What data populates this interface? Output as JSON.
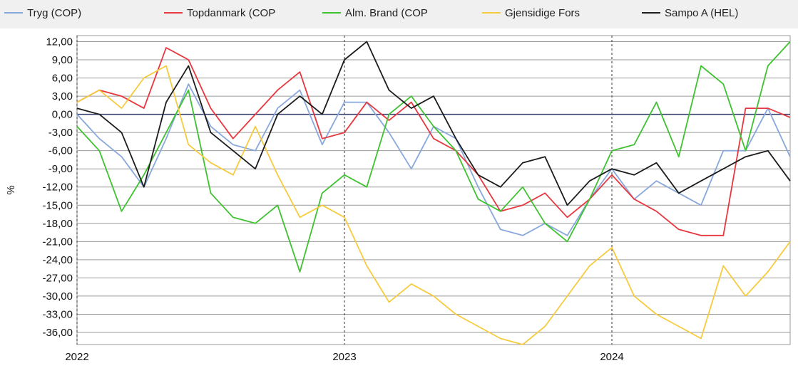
{
  "chart_data": {
    "type": "line",
    "ylabel": "%",
    "xlabel": "",
    "yticks": [
      "12,00",
      "9,00",
      "6,00",
      "3,00",
      "0,00",
      "-3,00",
      "-6,00",
      "-9,00",
      "-12,00",
      "-15,00",
      "-18,00",
      "-21,00",
      "-24,00",
      "-27,00",
      "-30,00",
      "-33,00",
      "-36,00"
    ],
    "ytick_values": [
      12,
      9,
      6,
      3,
      0,
      -3,
      -6,
      -9,
      -12,
      -15,
      -18,
      -21,
      -24,
      -27,
      -30,
      -33,
      -36
    ],
    "ylim": [
      -38,
      13
    ],
    "xlim": [
      0,
      32
    ],
    "xticks": [
      {
        "label": "2022",
        "x": 0
      },
      {
        "label": "2023",
        "x": 12
      },
      {
        "label": "2024",
        "x": 24
      }
    ],
    "legend_position": "top",
    "grid": true,
    "series": [
      {
        "name": "Tryg (COP)",
        "color": "#88a8dc",
        "x": [
          0,
          1,
          2,
          3,
          4,
          5,
          6,
          7,
          8,
          9,
          10,
          11,
          12,
          13,
          14,
          15,
          16,
          17,
          18,
          19,
          20,
          21,
          22,
          23,
          24,
          25,
          26,
          27,
          28,
          29,
          30,
          31,
          32
        ],
        "values": [
          0,
          -4,
          -7,
          -12,
          -4,
          5,
          -2,
          -5,
          -6,
          1,
          4,
          -5,
          2,
          2,
          -3,
          -9,
          -2,
          -4,
          -12,
          -19,
          -20,
          -18,
          -20,
          -14,
          -9,
          -14,
          -11,
          -13,
          -15,
          -6,
          -6,
          1,
          -7
        ]
      },
      {
        "name": "Topdanmark (COP",
        "color": "#e8373f",
        "x": [
          0,
          1,
          2,
          3,
          4,
          5,
          6,
          7,
          8,
          9,
          10,
          11,
          12,
          13,
          14,
          15,
          16,
          17,
          18,
          19,
          20,
          21,
          22,
          23,
          24,
          25,
          26,
          27,
          28,
          29,
          30,
          31,
          32
        ],
        "values": [
          2,
          4,
          3,
          1,
          11,
          9,
          1,
          -4,
          0,
          4,
          7,
          -4,
          -3,
          2,
          -1,
          2,
          -4,
          -6,
          -10,
          -16,
          -15,
          -13,
          -17,
          -14,
          -10,
          -14,
          -16,
          -19,
          -20,
          -20,
          1,
          1,
          -0.5
        ]
      },
      {
        "name": "Alm. Brand (COP",
        "color": "#3ec230",
        "x": [
          0,
          1,
          2,
          3,
          4,
          5,
          6,
          7,
          8,
          9,
          10,
          11,
          12,
          13,
          14,
          15,
          16,
          17,
          18,
          19,
          20,
          21,
          22,
          23,
          24,
          25,
          26,
          27,
          28,
          29,
          30,
          31,
          32
        ],
        "values": [
          -2,
          -6,
          -16,
          -10,
          -3,
          4,
          -13,
          -17,
          -18,
          -15,
          -26,
          -13,
          -10,
          -12,
          0,
          3,
          -2,
          -6,
          -14,
          -16,
          -12,
          -18,
          -21,
          -14,
          -6,
          -5,
          2,
          -7,
          8,
          5,
          -6,
          8,
          12
        ]
      },
      {
        "name": "Gjensidige Fors",
        "color": "#f7cb3e",
        "x": [
          0,
          1,
          2,
          3,
          4,
          5,
          6,
          7,
          8,
          9,
          10,
          11,
          12,
          13,
          14,
          15,
          16,
          17,
          18,
          19,
          20,
          21,
          22,
          23,
          24,
          25,
          26,
          27,
          28,
          29,
          30,
          31,
          32
        ],
        "values": [
          2,
          4,
          1,
          6,
          8,
          -5,
          -8,
          -10,
          -2,
          -10,
          -17,
          -15,
          -17,
          -25,
          -31,
          -28,
          -30,
          -33,
          -35,
          -37,
          -38,
          -35,
          -30,
          -25,
          -22,
          -30,
          -33,
          -35,
          -37,
          -25,
          -30,
          -26,
          -21
        ]
      },
      {
        "name": "Sampo A (HEL)",
        "color": "#1c1c1c",
        "x": [
          0,
          1,
          2,
          3,
          4,
          5,
          6,
          7,
          8,
          9,
          10,
          11,
          12,
          13,
          14,
          15,
          16,
          17,
          18,
          19,
          20,
          21,
          22,
          23,
          24,
          25,
          26,
          27,
          28,
          29,
          30,
          31,
          32
        ],
        "values": [
          1,
          0,
          -3,
          -12,
          2,
          8,
          -3,
          -6,
          -9,
          0,
          3,
          0,
          9,
          12,
          4,
          1,
          3,
          -4,
          -10,
          -12,
          -8,
          -7,
          -15,
          -11,
          -9,
          -10,
          -8,
          -13,
          -11,
          -9,
          -7,
          -6,
          -11
        ]
      }
    ]
  }
}
